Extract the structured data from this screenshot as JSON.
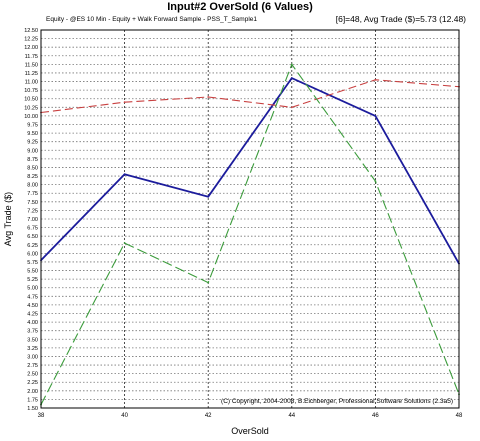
{
  "chart_data": {
    "type": "line",
    "title": "Input#2 OverSold (6 Values)",
    "subtitle": "Equity - @ES 10 Min - Equity + Walk Forward Sample - PSS_T_Sample1",
    "stats": "[6]=48,  Avg Trade ($)=5.73 (12.48)",
    "xlabel": "OverSold",
    "ylabel": "Avg Trade ($)",
    "copyright": "(C) Copyright, 2004-2008, B.Eichberger, Professional Software Solutions (2.3a5)",
    "x": [
      38,
      40,
      42,
      44,
      46,
      48
    ],
    "xlim": [
      38,
      48
    ],
    "ylim": [
      1.5,
      12.5
    ],
    "x_ticks": [
      "38",
      "40",
      "42",
      "44",
      "46",
      "48"
    ],
    "y_ticks": [
      "1.50",
      "1.75",
      "2.00",
      "2.25",
      "2.50",
      "2.75",
      "3.00",
      "3.25",
      "3.50",
      "3.75",
      "4.00",
      "4.25",
      "4.50",
      "4.75",
      "5.00",
      "5.25",
      "5.50",
      "5.75",
      "6.00",
      "6.25",
      "6.50",
      "6.75",
      "7.00",
      "7.25",
      "7.50",
      "7.75",
      "8.00",
      "8.25",
      "8.50",
      "8.75",
      "9.00",
      "9.25",
      "9.50",
      "9.75",
      "10.00",
      "10.25",
      "10.50",
      "10.75",
      "11.00",
      "11.25",
      "11.50",
      "11.75",
      "12.00",
      "12.25",
      "12.50"
    ],
    "grid": true,
    "series": [
      {
        "values": [
          5.8,
          8.3,
          7.65,
          11.1,
          10.0,
          5.7
        ],
        "color": "#1c1c9c",
        "style": "solid"
      },
      {
        "values": [
          10.1,
          10.4,
          10.55,
          10.25,
          11.05,
          10.85
        ],
        "color": "#c84040",
        "style": "dashed"
      },
      {
        "values": [
          1.6,
          6.3,
          5.15,
          11.5,
          8.1,
          1.9
        ],
        "color": "#3c9c3c",
        "style": "dashed"
      }
    ]
  }
}
